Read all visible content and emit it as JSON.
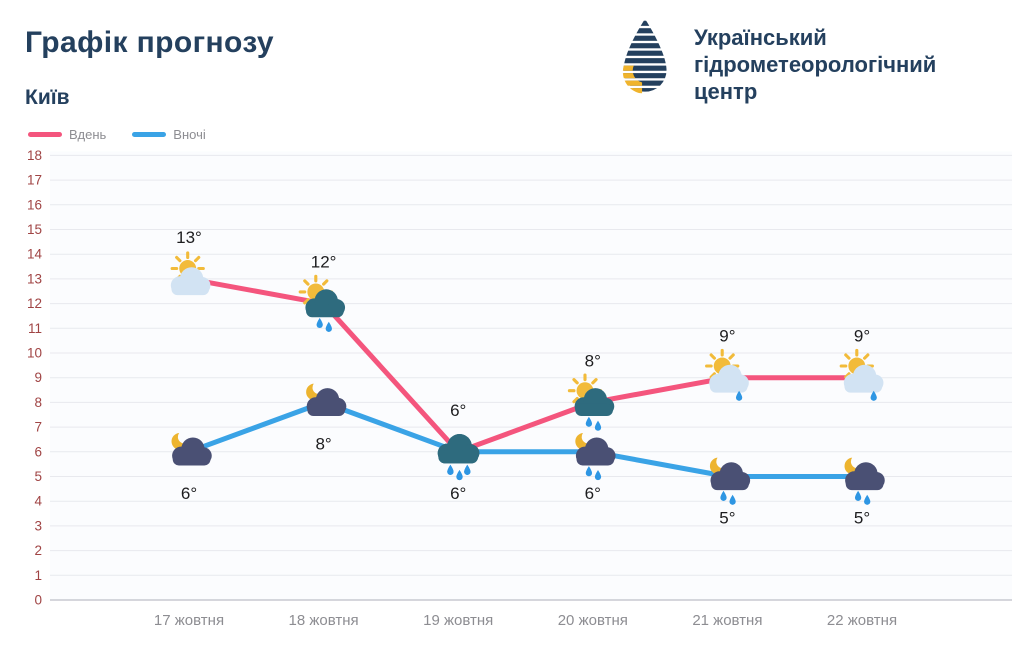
{
  "header": {
    "title": "Графік прогнозу",
    "subtitle": "Київ",
    "org": {
      "line1": "Український",
      "line2": "гідрометеорологічний",
      "line3": "центр"
    }
  },
  "legend": [
    {
      "label": "Вдень",
      "color": "#f4557d"
    },
    {
      "label": "Вночі",
      "color": "#3aa3e6"
    }
  ],
  "chart_data": {
    "type": "line",
    "title": "Графік прогнозу",
    "subtitle": "Київ",
    "categories": [
      "17 жовтня",
      "18 жовтня",
      "19 жовтня",
      "20 жовтня",
      "21 жовтня",
      "22 жовтня"
    ],
    "series": [
      {
        "name": "Вдень",
        "color": "#f4557d",
        "values": [
          13,
          12,
          6,
          8,
          9,
          9
        ],
        "labels": [
          "13°",
          "12°",
          "6°",
          "8°",
          "9°",
          "9°"
        ],
        "icons": [
          "sun-cloud",
          "sun-raincloud",
          "raincloud",
          "sun-raincloud",
          "sun-cloud-drizzle",
          "sun-cloud-drizzle"
        ]
      },
      {
        "name": "Вночі",
        "color": "#3aa3e6",
        "values": [
          6,
          8,
          6,
          6,
          5,
          5
        ],
        "labels": [
          "6°",
          "8°",
          "6°",
          "6°",
          "5°",
          "5°"
        ],
        "icons": [
          "moon-cloud",
          "moon-cloud",
          "raincloud",
          "moon-raincloud",
          "moon-raincloud",
          "moon-raincloud"
        ]
      }
    ],
    "ylim": [
      0,
      18
    ],
    "y_ticks": [
      0,
      1,
      2,
      3,
      4,
      5,
      6,
      7,
      8,
      9,
      10,
      11,
      12,
      13,
      14,
      15,
      16,
      17,
      18
    ],
    "xlabel": "",
    "ylabel": "",
    "grid": true,
    "legend_position": "top-left"
  }
}
